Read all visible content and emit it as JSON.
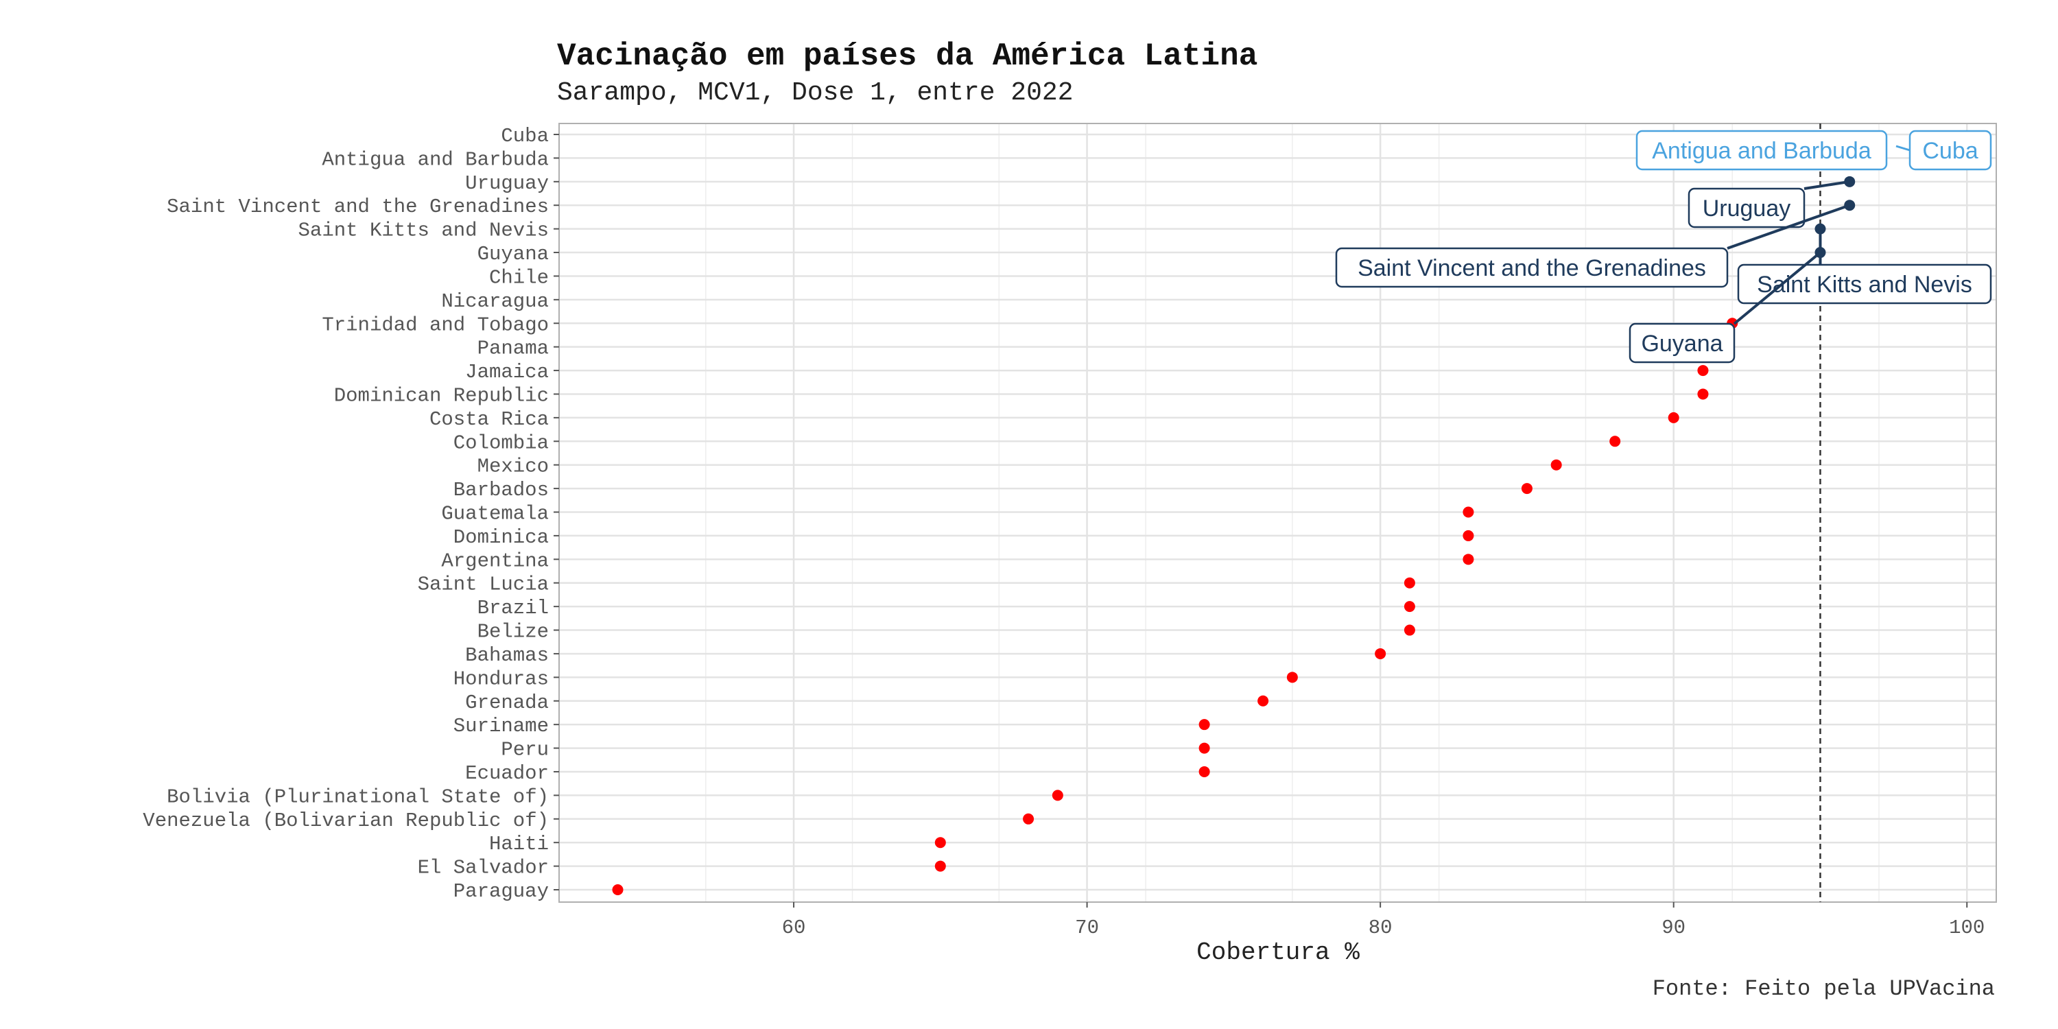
{
  "title": "Vacinação em países da América Latina",
  "subtitle": "Sarampo, MCV1, Dose 1, entre 2022",
  "caption": "Fonte: Feito pela UPVacina",
  "colors": {
    "point": "#ff0000",
    "highlight": "#1f3b5c",
    "highlight_light": "#4aa3df",
    "reference_line": "#333333",
    "grid": "#e3e3e3",
    "axis_text": "#555555"
  },
  "chart_data": {
    "type": "scatter",
    "xlabel": "Cobertura %",
    "ylabel": "",
    "xlim": [
      52,
      101
    ],
    "x_ticks": [
      60,
      70,
      80,
      90,
      100
    ],
    "reference_x": 95,
    "grid": true,
    "categories": [
      "Paraguay",
      "El Salvador",
      "Haiti",
      "Venezuela (Bolivarian Republic of)",
      "Bolivia (Plurinational State of)",
      "Ecuador",
      "Peru",
      "Suriname",
      "Grenada",
      "Honduras",
      "Bahamas",
      "Belize",
      "Brazil",
      "Saint Lucia",
      "Argentina",
      "Dominica",
      "Guatemala",
      "Barbados",
      "Mexico",
      "Colombia",
      "Costa Rica",
      "Dominican Republic",
      "Jamaica",
      "Panama",
      "Trinidad and Tobago",
      "Nicaragua",
      "Chile",
      "Guyana",
      "Saint Kitts and Nevis",
      "Saint Vincent and the Grenadines",
      "Uruguay",
      "Antigua and Barbuda",
      "Cuba"
    ],
    "values": [
      54,
      65,
      65,
      68,
      69,
      74,
      74,
      74,
      76,
      77,
      80,
      81,
      81,
      81,
      83,
      83,
      83,
      85,
      86,
      88,
      90,
      91,
      91,
      null,
      92,
      null,
      null,
      95,
      95,
      96,
      96,
      null,
      null
    ],
    "highlighted": [
      {
        "country": "Cuba",
        "style": "light"
      },
      {
        "country": "Antigua and Barbuda",
        "style": "light"
      },
      {
        "country": "Uruguay",
        "style": "dark"
      },
      {
        "country": "Saint Vincent and the Grenadines",
        "style": "dark"
      },
      {
        "country": "Saint Kitts and Nevis",
        "style": "dark"
      },
      {
        "country": "Guyana",
        "style": "dark"
      }
    ]
  }
}
